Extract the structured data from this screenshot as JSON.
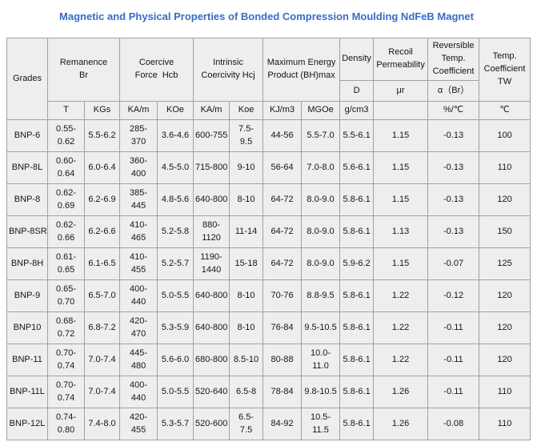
{
  "page": {
    "title": "Magnetic and Physical Properties of Bonded Compression Moulding NdFeB Magnet"
  },
  "colors": {
    "title_text": "#3a6bc6",
    "cell_background": "#eeeeee",
    "cell_border": "#a1a1a1",
    "body_text": "#151515",
    "page_background": "#ffffff"
  },
  "table": {
    "header": {
      "grades": "Grades",
      "remanence": "Remanence\nBr",
      "coercive_force": "Coercive\nForce  Hcb",
      "intrinsic_coercivity": "Intrinsic\nCoercivity Hcj",
      "max_energy_product": "Maximum Energy\nProduct (BH)max",
      "density": "Density",
      "recoil_permeability": "Recoil\nPermeability",
      "reversible_temp_coefficient": "Reversible\nTemp.\nCoefficient",
      "temp_coefficient_tw": "Temp.\nCoefficient\nTW",
      "density_symbol": "D",
      "recoil_symbol": "μr",
      "reversible_symbol": "α（Br）"
    },
    "units": [
      "T",
      "KGs",
      "KA/m",
      "KOe",
      "KA/m",
      "Koe",
      "KJ/m3",
      "MGOe",
      "g/cm3",
      "",
      "%/℃",
      "℃"
    ],
    "rows": [
      [
        "BNP-6",
        "0.55-\n0.62",
        "5.5-6.2",
        "285-\n370",
        "3.6-4.6",
        "600-755",
        "7.5-\n9.5",
        "44-56",
        "5.5-7.0",
        "5.5-6.1",
        "1.15",
        "-0.13",
        "100"
      ],
      [
        "BNP-8L",
        "0.60-\n0.64",
        "6.0-6.4",
        "360-\n400",
        "4.5-5.0",
        "715-800",
        "9-10",
        "56-64",
        "7.0-8.0",
        "5.6-6.1",
        "1.15",
        "-0.13",
        "110"
      ],
      [
        "BNP-8",
        "0.62-\n0.69",
        "6.2-6.9",
        "385-\n445",
        "4.8-5.6",
        "640-800",
        "8-10",
        "64-72",
        "8.0-9.0",
        "5.8-6.1",
        "1.15",
        "-0.13",
        "120"
      ],
      [
        "BNP-8SR",
        "0.62-\n0.66",
        "6.2-6.6",
        "410-\n465",
        "5.2-5.8",
        "880-\n1120",
        "11-14",
        "64-72",
        "8.0-9.0",
        "5.8-6.1",
        "1.13",
        "-0.13",
        "150"
      ],
      [
        "BNP-8H",
        "0.61-\n0.65",
        "6.1-6.5",
        "410-\n455",
        "5.2-5.7",
        "1190-\n1440",
        "15-18",
        "64-72",
        "8.0-9.0",
        "5.9-6.2",
        "1.15",
        "-0.07",
        "125"
      ],
      [
        "BNP-9",
        "0.65-\n0.70",
        "6.5-7.0",
        "400-\n440",
        "5.0-5.5",
        "640-800",
        "8-10",
        "70-76",
        "8.8-9.5",
        "5.8-6.1",
        "1.22",
        "-0.12",
        "120"
      ],
      [
        "BNP10",
        "0.68-\n0.72",
        "6.8-7.2",
        "420-\n470",
        "5.3-5.9",
        "640-800",
        "8-10",
        "76-84",
        "9.5-10.5",
        "5.8-6.1",
        "1.22",
        "-0.11",
        "120"
      ],
      [
        "BNP-11",
        "0.70-\n0.74",
        "7.0-7.4",
        "445-\n480",
        "5.6-6.0",
        "680-800",
        "8.5-10",
        "80-88",
        "10.0-\n11.0",
        "5.8-6.1",
        "1.22",
        "-0.11",
        "120"
      ],
      [
        "BNP-11L",
        "0.70-\n0.74",
        "7.0-7.4",
        "400-\n440",
        "5.0-5.5",
        "520-640",
        "6.5-8",
        "78-84",
        "9.8-10.5",
        "5.8-6.1",
        "1.26",
        "-0.11",
        "110"
      ],
      [
        "BNP-12L",
        "0.74-\n0.80",
        "7.4-8.0",
        "420-\n455",
        "5.3-5.7",
        "520-600",
        "6.5-\n7.5",
        "84-92",
        "10.5-\n11.5",
        "5.8-6.1",
        "1.26",
        "-0.08",
        "110"
      ]
    ]
  }
}
